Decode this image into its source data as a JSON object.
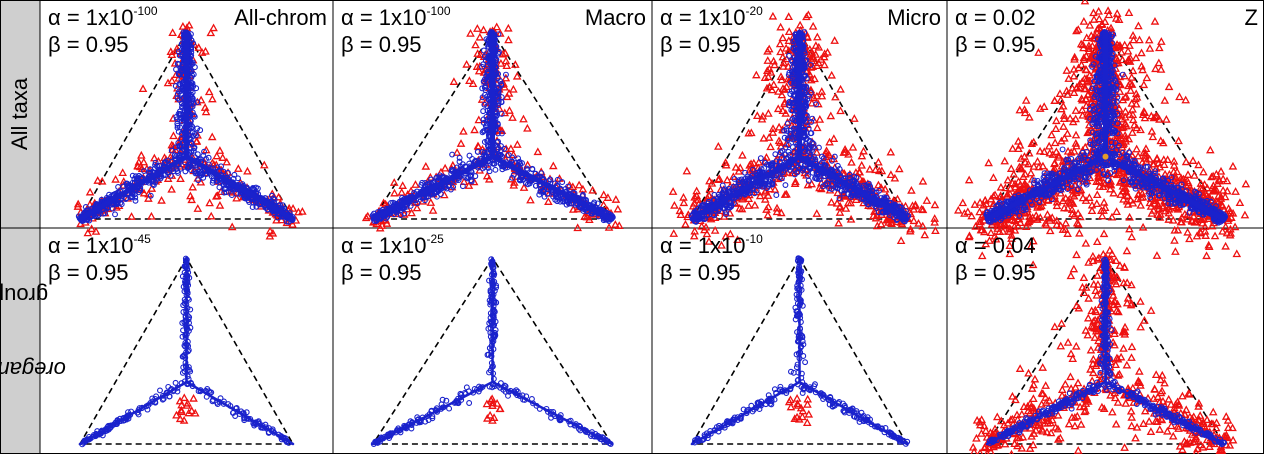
{
  "rows": [
    {
      "label": "All taxa"
    },
    {
      "label_italic": "oreganus",
      "label_rest": " group"
    }
  ],
  "panels": [
    {
      "row": 0,
      "col": 0,
      "alpha": "1x10",
      "alpha_exp": "-100",
      "beta": "0.95",
      "label": "All-chrom"
    },
    {
      "row": 0,
      "col": 1,
      "alpha": "1x10",
      "alpha_exp": "-100",
      "beta": "0.95",
      "label": "Macro"
    },
    {
      "row": 0,
      "col": 2,
      "alpha": "1x10",
      "alpha_exp": "-20",
      "beta": "0.95",
      "label": "Micro"
    },
    {
      "row": 0,
      "col": 3,
      "alpha": "0.02",
      "alpha_exp": "",
      "beta": "0.95",
      "label": "Z"
    },
    {
      "row": 1,
      "col": 0,
      "alpha": "1x10",
      "alpha_exp": "-45",
      "beta": "0.95",
      "label": ""
    },
    {
      "row": 1,
      "col": 1,
      "alpha": "1x10",
      "alpha_exp": "-25",
      "beta": "0.95",
      "label": ""
    },
    {
      "row": 1,
      "col": 2,
      "alpha": "1x10",
      "alpha_exp": "-10",
      "beta": "0.95",
      "label": ""
    },
    {
      "row": 1,
      "col": 3,
      "alpha": "0.04",
      "alpha_exp": "",
      "beta": "0.95",
      "label": ""
    }
  ],
  "greek": {
    "alpha": "α",
    "beta": "β"
  },
  "chart_data": {
    "type": "scatter",
    "layout": "2x4 ternary panel grid",
    "series_colors": {
      "outlier_triangles": "#ee1111",
      "points_circles": "#1a22cc",
      "center_dot": "#e39a2a"
    },
    "panels": [
      {
        "spread": 0.3,
        "triangles": 320,
        "circles": 900,
        "red_coverage": 0.72
      },
      {
        "spread": 0.3,
        "triangles": 320,
        "circles": 900,
        "red_coverage": 0.72
      },
      {
        "spread": 0.42,
        "triangles": 700,
        "circles": 1000,
        "red_coverage": 0.85
      },
      {
        "spread": 0.5,
        "triangles": 1500,
        "circles": 1200,
        "red_coverage": 0.95
      },
      {
        "spread": 0.05,
        "triangles": 14,
        "circles": 300,
        "red_coverage": 0.0
      },
      {
        "spread": 0.05,
        "triangles": 12,
        "circles": 300,
        "red_coverage": 0.0
      },
      {
        "spread": 0.06,
        "triangles": 16,
        "circles": 300,
        "red_coverage": 0.0
      },
      {
        "spread": 0.35,
        "triangles": 600,
        "circles": 500,
        "red_coverage": 0.9
      }
    ]
  }
}
